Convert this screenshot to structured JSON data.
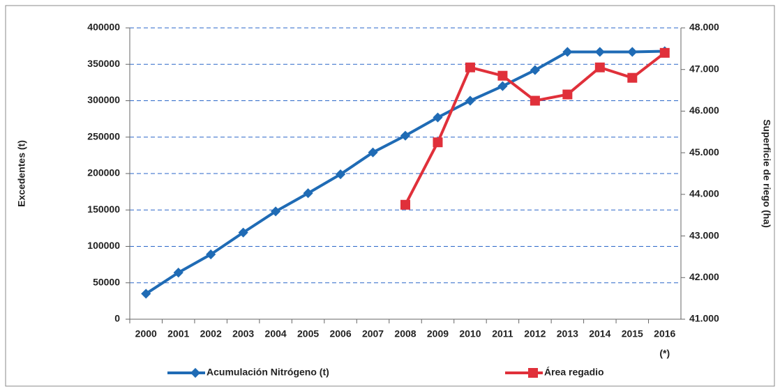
{
  "chart_data": {
    "type": "line",
    "categories": [
      "2000",
      "2001",
      "2002",
      "2003",
      "2004",
      "2005",
      "2006",
      "2007",
      "2008",
      "2009",
      "2010",
      "2011",
      "2012",
      "2013",
      "2014",
      "2015",
      "2016"
    ],
    "x_note": "(*)",
    "ylabel": "Excedentes (t)",
    "y2label": "Superficie de riego (ha)",
    "ylim": [
      0,
      400000
    ],
    "yticks": [
      0,
      50000,
      100000,
      150000,
      200000,
      250000,
      300000,
      350000,
      400000
    ],
    "y2lim": [
      41000,
      48000
    ],
    "y2ticks": [
      {
        "value": 41000,
        "label": "41.000"
      },
      {
        "value": 42000,
        "label": "42.000"
      },
      {
        "value": 43000,
        "label": "43.000"
      },
      {
        "value": 44000,
        "label": "44.000"
      },
      {
        "value": 45000,
        "label": "45.000"
      },
      {
        "value": 46000,
        "label": "46.000"
      },
      {
        "value": 47000,
        "label": "47.000"
      },
      {
        "value": 48000,
        "label": "48.000"
      }
    ],
    "grid": true,
    "legend": "bottom",
    "series": [
      {
        "name": "Acumulación Nitrógeno (t)",
        "color": "#1f6bb5",
        "marker": "diamond",
        "values": [
          35000,
          64000,
          89000,
          119000,
          148000,
          173000,
          199000,
          229000,
          252000,
          277000,
          300000,
          320000,
          342000,
          367000,
          367000,
          367000,
          368000
        ]
      },
      {
        "name": "Área regadio",
        "color": "#e0303a",
        "marker": "square",
        "axis": "y2",
        "values": [
          null,
          null,
          null,
          null,
          null,
          null,
          null,
          null,
          43750,
          45250,
          47050,
          46850,
          46250,
          46400,
          47050,
          46800,
          47400
        ]
      }
    ]
  }
}
